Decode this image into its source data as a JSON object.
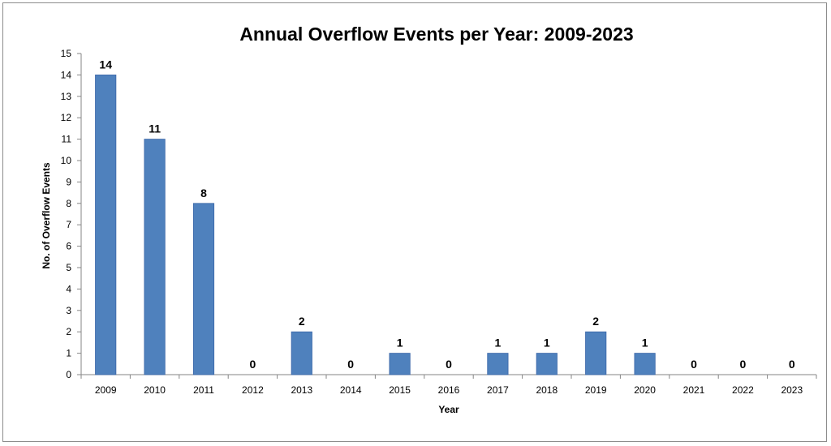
{
  "chart_data": {
    "type": "bar",
    "title": "Annual Overflow Events per Year: 2009-2023",
    "xlabel": "Year",
    "ylabel": "No. of Overflow Events",
    "categories": [
      "2009",
      "2010",
      "2011",
      "2012",
      "2013",
      "2014",
      "2015",
      "2016",
      "2017",
      "2018",
      "2019",
      "2020",
      "2021",
      "2022",
      "2023"
    ],
    "values": [
      14,
      11,
      8,
      0,
      2,
      0,
      1,
      0,
      1,
      1,
      2,
      1,
      0,
      0,
      0
    ],
    "data_labels": [
      "14",
      "11",
      "8",
      "0",
      "2",
      "0",
      "1",
      "0",
      "1",
      "1",
      "2",
      "1",
      "0",
      "0",
      "0"
    ],
    "ylim": [
      0,
      15
    ],
    "yticks": [
      "0",
      "1",
      "2",
      "3",
      "4",
      "5",
      "6",
      "7",
      "8",
      "9",
      "10",
      "11",
      "12",
      "13",
      "14",
      "15"
    ],
    "grid": false,
    "legend": "none",
    "bar_color": "#4f81bd"
  }
}
